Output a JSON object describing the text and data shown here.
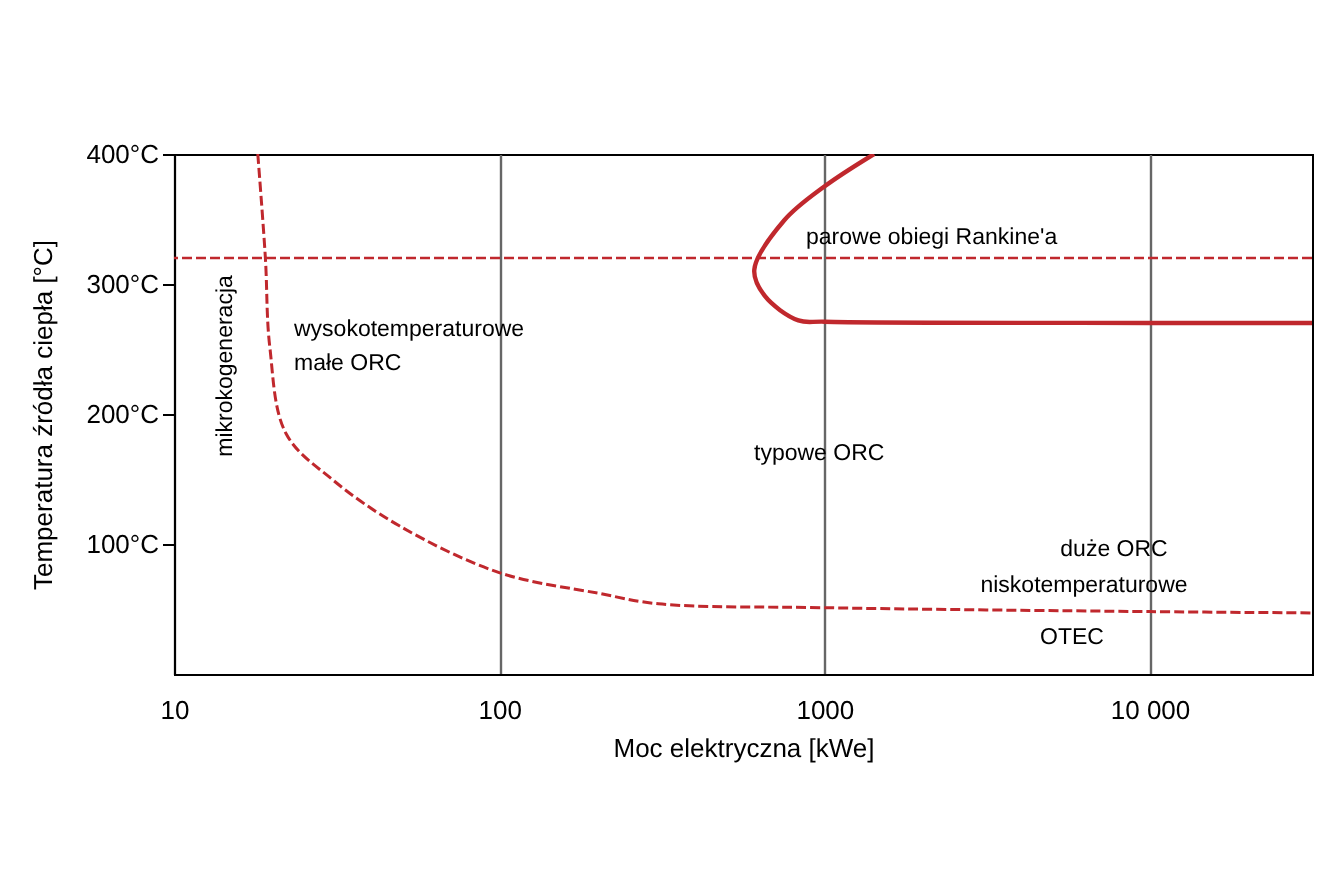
{
  "chart_data": {
    "type": "line",
    "xlabel": "Moc elektryczna [kWe]",
    "ylabel": "Temperatura źródła ciepła [°C]",
    "log": "x",
    "xlim": [
      10,
      31600
    ],
    "xticks": [
      10,
      100,
      1000,
      {
        "value": 10000,
        "label": "10 000"
      }
    ],
    "ylim": [
      0,
      400
    ],
    "yticks": [
      {
        "value": 100,
        "label": "100°C"
      },
      {
        "value": 200,
        "label": "200°C"
      },
      {
        "value": 300,
        "label": "300°C"
      },
      {
        "value": 400,
        "label": "400°C"
      }
    ],
    "grid": "x",
    "series": [
      {
        "color": "#c0282d",
        "line_style": "dashed",
        "x": [
          18.1,
          19.1,
          19.7,
          22.1,
          30.9,
          49.3,
          100,
          203,
          309,
          1000,
          10000,
          31600
        ],
        "values": [
          400,
          320,
          252,
          185,
          149,
          114,
          78,
          62,
          54,
          51,
          48,
          47
        ]
      },
      {
        "color": "#c0282d",
        "line_style": "solid",
        "x": [
          1422,
          1000,
          753,
          609,
          655,
          832,
          1000,
          10000,
          31600
        ],
        "values": [
          400,
          375,
          349,
          311,
          291,
          272,
          271,
          270,
          270
        ]
      }
    ],
    "ref_lines": [
      {
        "axis": "y",
        "value": 320,
        "color": "#c0282d",
        "line_style": "dashed"
      }
    ],
    "annotations": [
      "mikrokogeneracja",
      "wysokotemperaturowe\nmałe ORC",
      "parowe obiegi Rankine'a",
      "typowe ORC",
      "duże ORC",
      "niskotemperaturowe",
      "OTEC"
    ]
  }
}
